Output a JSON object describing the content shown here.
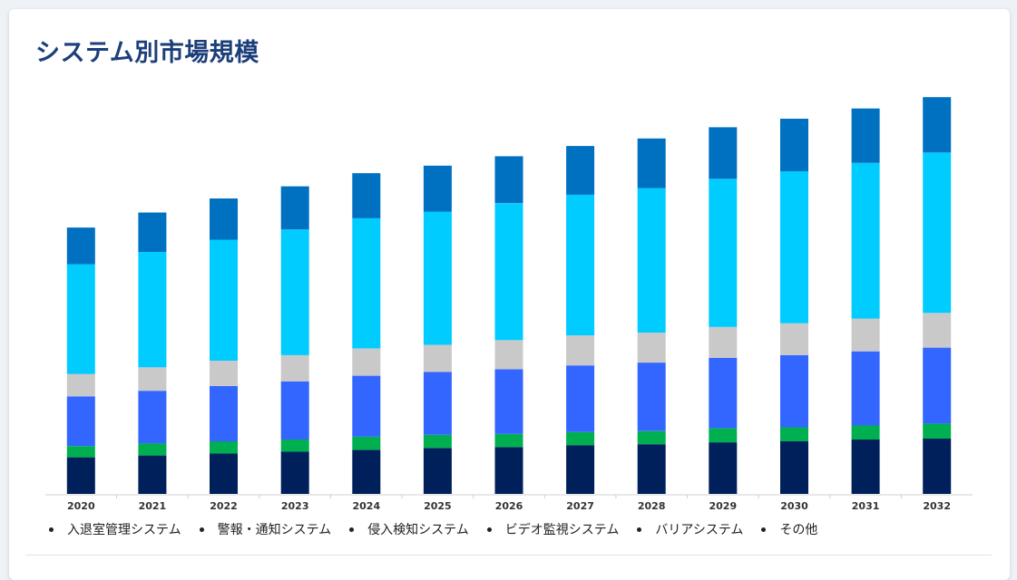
{
  "title": "システム別市場規模",
  "chart_data": {
    "type": "bar",
    "stacked": true,
    "title": "システム別市場規模",
    "xlabel": "",
    "ylabel": "",
    "categories": [
      "2020",
      "2021",
      "2022",
      "2023",
      "2024",
      "2025",
      "2026",
      "2027",
      "2028",
      "2029",
      "2030",
      "2031",
      "2032"
    ],
    "series": [
      {
        "name": "入退室管理システム",
        "color": "#00205b",
        "values": [
          39,
          41,
          43,
          45,
          47,
          49,
          50,
          52,
          53,
          55,
          56,
          58,
          59
        ]
      },
      {
        "name": "警報・通知システム",
        "color": "#00b050",
        "values": [
          12,
          13,
          13,
          13,
          14,
          14,
          14,
          14,
          14,
          15,
          15,
          15,
          16
        ]
      },
      {
        "name": "侵入検知システム",
        "color": "#3366ff",
        "values": [
          53,
          56,
          59,
          62,
          65,
          67,
          69,
          71,
          73,
          75,
          77,
          79,
          81
        ]
      },
      {
        "name": "ビデオ監視システム",
        "color": "#c9c9c9",
        "values": [
          24,
          25,
          27,
          28,
          29,
          29,
          31,
          32,
          32,
          33,
          34,
          35,
          37
        ]
      },
      {
        "name": "バリアシステム",
        "color": "#00ccff",
        "values": [
          117,
          123,
          129,
          134,
          139,
          142,
          146,
          150,
          154,
          158,
          162,
          166,
          171
        ]
      },
      {
        "name": "その他",
        "color": "#0070c0",
        "values": [
          39,
          42,
          44,
          46,
          48,
          49,
          50,
          52,
          53,
          55,
          56,
          58,
          59
        ]
      }
    ],
    "ylim": [
      0,
      430
    ],
    "grid": false,
    "legend": "bottom-left"
  }
}
